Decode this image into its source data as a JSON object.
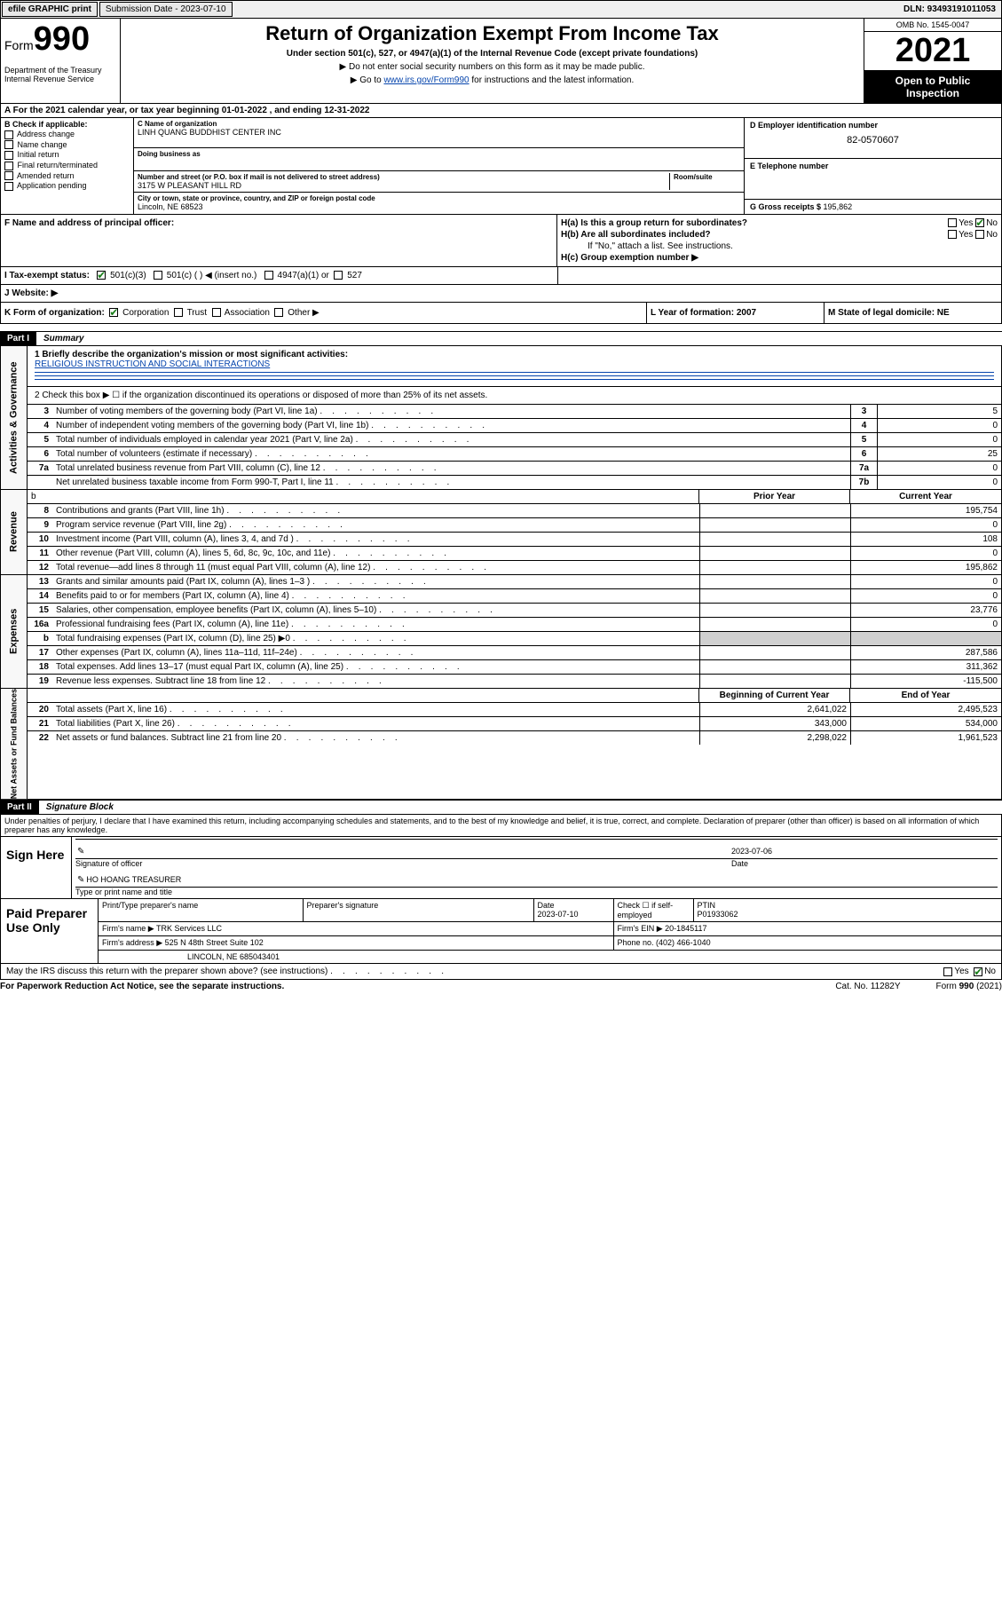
{
  "meta": {
    "efile": "efile GRAPHIC print",
    "submission": "Submission Date - 2023-07-10",
    "dln": "DLN: 93493191011053"
  },
  "header": {
    "form_word": "Form",
    "form_num": "990",
    "title": "Return of Organization Exempt From Income Tax",
    "sub1": "Under section 501(c), 527, or 4947(a)(1) of the Internal Revenue Code (except private foundations)",
    "sub2": "▶ Do not enter social security numbers on this form as it may be made public.",
    "sub3_pre": "▶ Go to ",
    "sub3_link": "www.irs.gov/Form990",
    "sub3_post": " for instructions and the latest information.",
    "dept": "Department of the Treasury\nInternal Revenue Service",
    "omb": "OMB No. 1545-0047",
    "year": "2021",
    "open": "Open to Public Inspection"
  },
  "row_a": "A For the 2021 calendar year, or tax year beginning 01-01-2022   , and ending 12-31-2022",
  "col_b": {
    "head": "B Check if applicable:",
    "items": [
      "Address change",
      "Name change",
      "Initial return",
      "Final return/terminated",
      "Amended return",
      "Application pending"
    ]
  },
  "col_c": {
    "name_lbl": "C Name of organization",
    "name": "LINH QUANG BUDDHIST CENTER INC",
    "dba_lbl": "Doing business as",
    "dba": "",
    "addr_lbl": "Number and street (or P.O. box if mail is not delivered to street address)",
    "room_lbl": "Room/suite",
    "addr": "3175 W PLEASANT HILL RD",
    "city_lbl": "City or town, state or province, country, and ZIP or foreign postal code",
    "city": "Lincoln, NE  68523"
  },
  "col_d": {
    "d_lbl": "D Employer identification number",
    "d_val": "82-0570607",
    "e_lbl": "E Telephone number",
    "e_val": "",
    "g_lbl": "G Gross receipts $ ",
    "g_val": "195,862"
  },
  "row_f": {
    "left": "F  Name and address of principal officer:",
    "ha": "H(a)  Is this a group return for subordinates?",
    "ha_yes": "Yes",
    "ha_no": "No",
    "hb": "H(b)  Are all subordinates included?",
    "hb_yes": "Yes",
    "hb_no": "No",
    "hb_note": "If \"No,\" attach a list. See instructions.",
    "hc": "H(c)  Group exemption number ▶"
  },
  "row_i": {
    "lbl": "I   Tax-exempt status:",
    "o1": "501(c)(3)",
    "o2": "501(c) (   ) ◀ (insert no.)",
    "o3": "4947(a)(1) or",
    "o4": "527"
  },
  "row_j": "J   Website: ▶",
  "row_k": {
    "left": "K Form of organization:",
    "opts": [
      "Corporation",
      "Trust",
      "Association",
      "Other ▶"
    ],
    "l": "L Year of formation: 2007",
    "m": "M State of legal domicile: NE"
  },
  "part1": {
    "num": "Part I",
    "title": "Summary"
  },
  "mission_lbl": "1   Briefly describe the organization's mission or most significant activities:",
  "mission": "RELIGIOUS INSTRUCTION AND SOCIAL INTERACTIONS",
  "line2": "2   Check this box ▶ ☐  if the organization discontinued its operations or disposed of more than 25% of its net assets.",
  "gov_rows": [
    {
      "n": "3",
      "d": "Number of voting members of the governing body (Part VI, line 1a)",
      "a": "3",
      "v": "5"
    },
    {
      "n": "4",
      "d": "Number of independent voting members of the governing body (Part VI, line 1b)",
      "a": "4",
      "v": "0"
    },
    {
      "n": "5",
      "d": "Total number of individuals employed in calendar year 2021 (Part V, line 2a)",
      "a": "5",
      "v": "0"
    },
    {
      "n": "6",
      "d": "Total number of volunteers (estimate if necessary)",
      "a": "6",
      "v": "25"
    },
    {
      "n": "7a",
      "d": "Total unrelated business revenue from Part VIII, column (C), line 12",
      "a": "7a",
      "v": "0"
    },
    {
      "n": "",
      "d": "Net unrelated business taxable income from Form 990-T, Part I, line 11",
      "a": "7b",
      "v": "0"
    }
  ],
  "col_hdrs": {
    "prior": "Prior Year",
    "curr": "Current Year"
  },
  "rev_rows": [
    {
      "n": "8",
      "d": "Contributions and grants (Part VIII, line 1h)",
      "p": "",
      "c": "195,754"
    },
    {
      "n": "9",
      "d": "Program service revenue (Part VIII, line 2g)",
      "p": "",
      "c": "0"
    },
    {
      "n": "10",
      "d": "Investment income (Part VIII, column (A), lines 3, 4, and 7d )",
      "p": "",
      "c": "108"
    },
    {
      "n": "11",
      "d": "Other revenue (Part VIII, column (A), lines 5, 6d, 8c, 9c, 10c, and 11e)",
      "p": "",
      "c": "0"
    },
    {
      "n": "12",
      "d": "Total revenue—add lines 8 through 11 (must equal Part VIII, column (A), line 12)",
      "p": "",
      "c": "195,862"
    }
  ],
  "exp_rows": [
    {
      "n": "13",
      "d": "Grants and similar amounts paid (Part IX, column (A), lines 1–3 )",
      "p": "",
      "c": "0"
    },
    {
      "n": "14",
      "d": "Benefits paid to or for members (Part IX, column (A), line 4)",
      "p": "",
      "c": "0"
    },
    {
      "n": "15",
      "d": "Salaries, other compensation, employee benefits (Part IX, column (A), lines 5–10)",
      "p": "",
      "c": "23,776"
    },
    {
      "n": "16a",
      "d": "Professional fundraising fees (Part IX, column (A), line 11e)",
      "p": "",
      "c": "0"
    },
    {
      "n": "b",
      "d": "Total fundraising expenses (Part IX, column (D), line 25) ▶0",
      "p": "shade",
      "c": "shade"
    },
    {
      "n": "17",
      "d": "Other expenses (Part IX, column (A), lines 11a–11d, 11f–24e)",
      "p": "",
      "c": "287,586"
    },
    {
      "n": "18",
      "d": "Total expenses. Add lines 13–17 (must equal Part IX, column (A), line 25)",
      "p": "",
      "c": "311,362"
    },
    {
      "n": "19",
      "d": "Revenue less expenses. Subtract line 18 from line 12",
      "p": "",
      "c": "-115,500"
    }
  ],
  "bal_hdrs": {
    "beg": "Beginning of Current Year",
    "end": "End of Year"
  },
  "bal_rows": [
    {
      "n": "20",
      "d": "Total assets (Part X, line 16)",
      "p": "2,641,022",
      "c": "2,495,523"
    },
    {
      "n": "21",
      "d": "Total liabilities (Part X, line 26)",
      "p": "343,000",
      "c": "534,000"
    },
    {
      "n": "22",
      "d": "Net assets or fund balances. Subtract line 21 from line 20",
      "p": "2,298,022",
      "c": "1,961,523"
    }
  ],
  "vlabels": {
    "gov": "Activities & Governance",
    "rev": "Revenue",
    "exp": "Expenses",
    "bal": "Net Assets or Fund Balances"
  },
  "part2": {
    "num": "Part II",
    "title": "Signature Block"
  },
  "decl": "Under penalties of perjury, I declare that I have examined this return, including accompanying schedules and statements, and to the best of my knowledge and belief, it is true, correct, and complete. Declaration of preparer (other than officer) is based on all information of which preparer has any knowledge.",
  "sign": {
    "lbl": "Sign Here",
    "sig_lbl": "Signature of officer",
    "date_val": "2023-07-06",
    "date_lbl": "Date",
    "name": "HO HOANG TREASURER",
    "name_lbl": "Type or print name and title"
  },
  "prep": {
    "lbl": "Paid Preparer Use Only",
    "r1": {
      "c1": "Print/Type preparer's name",
      "c2": "Preparer's signature",
      "c3": "Date\n2023-07-10",
      "c4": "Check ☐ if self-employed",
      "c5": "PTIN\nP01933062"
    },
    "r2": {
      "c1": "Firm's name   ▶ TRK Services LLC",
      "c2": "Firm's EIN ▶ 20-1845117"
    },
    "r3": {
      "c1": "Firm's address ▶ 525 N 48th Street Suite 102",
      "c2": "Phone no. (402) 466-1040"
    },
    "r4": "LINCOLN, NE  685043401"
  },
  "may_irs": "May the IRS discuss this return with the preparer shown above? (see instructions)",
  "may_yes": "Yes",
  "may_no": "No",
  "footer": {
    "l": "For Paperwork Reduction Act Notice, see the separate instructions.",
    "m": "Cat. No. 11282Y",
    "r": "Form 990 (2021)"
  }
}
